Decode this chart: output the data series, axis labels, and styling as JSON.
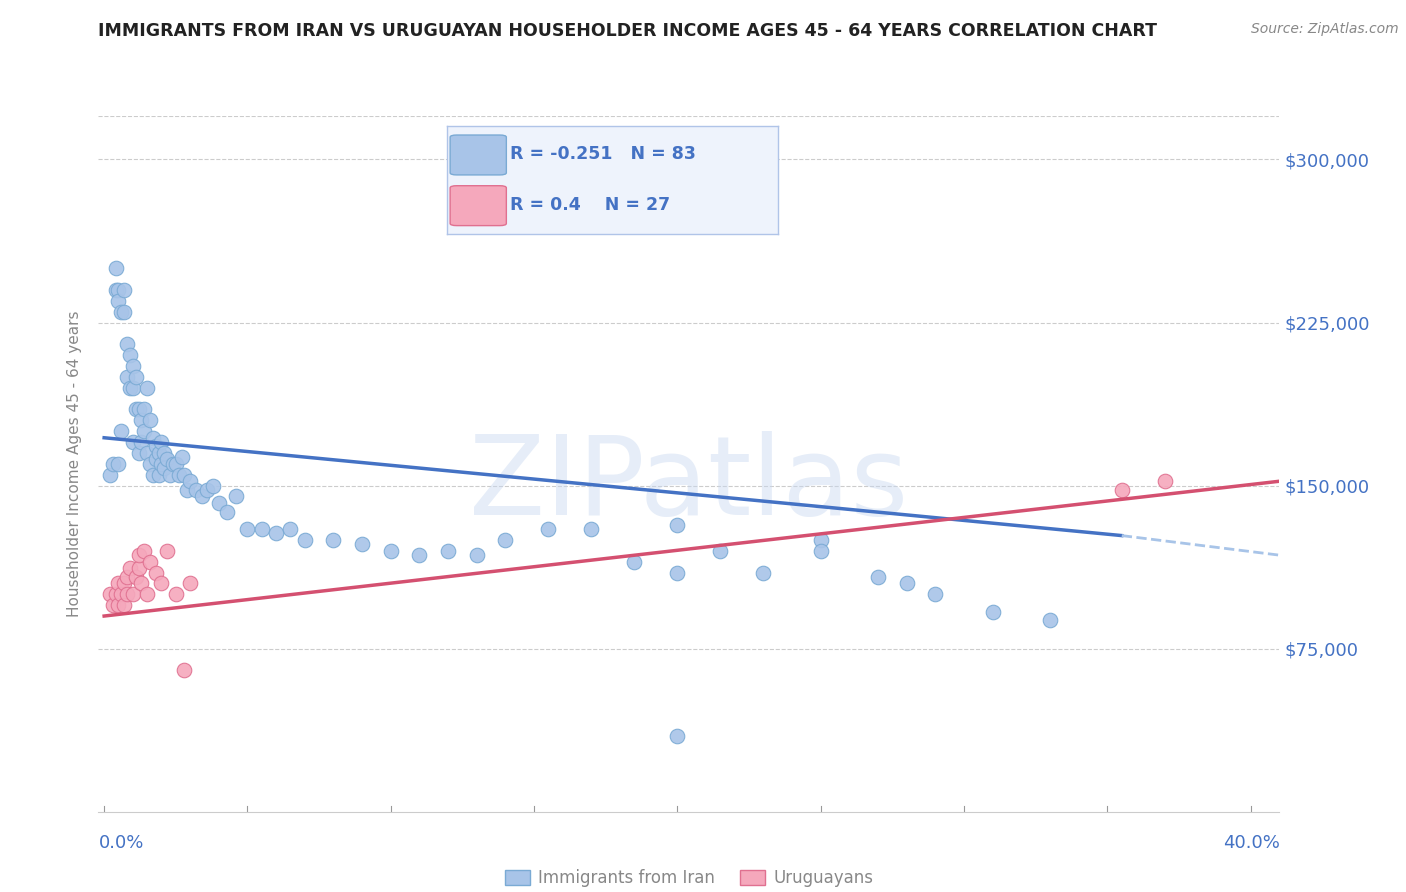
{
  "title": "IMMIGRANTS FROM IRAN VS URUGUAYAN HOUSEHOLDER INCOME AGES 45 - 64 YEARS CORRELATION CHART",
  "source": "Source: ZipAtlas.com",
  "ylabel": "Householder Income Ages 45 - 64 years",
  "yticks": [
    0,
    75000,
    150000,
    225000,
    300000
  ],
  "ytick_labels": [
    "",
    "$75,000",
    "$150,000",
    "$225,000",
    "$300,000"
  ],
  "xlim": [
    -0.002,
    0.41
  ],
  "ylim": [
    0,
    320000
  ],
  "iran_color": "#a8c4e8",
  "iran_edge": "#7aaad4",
  "uruguay_color": "#f5a8bc",
  "uruguay_edge": "#e07090",
  "trend_iran_solid_color": "#4472c4",
  "trend_iran_dash_color": "#a8c4e8",
  "trend_uruguay_color": "#d45070",
  "watermark_text": "ZIPatlas",
  "iran_R": -0.251,
  "iran_N": 83,
  "uruguay_R": 0.4,
  "uruguay_N": 27,
  "iran_trend_x0": 0.0,
  "iran_trend_y0": 172000,
  "iran_trend_x1": 0.355,
  "iran_trend_y1": 127000,
  "iran_trend_dash_x1": 0.41,
  "iran_trend_dash_y1": 118000,
  "uru_trend_x0": 0.0,
  "uru_trend_y0": 90000,
  "uru_trend_x1": 0.41,
  "uru_trend_y1": 152000,
  "iran_x": [
    0.002,
    0.003,
    0.004,
    0.004,
    0.005,
    0.005,
    0.005,
    0.006,
    0.006,
    0.007,
    0.007,
    0.008,
    0.008,
    0.009,
    0.009,
    0.01,
    0.01,
    0.01,
    0.011,
    0.011,
    0.012,
    0.012,
    0.013,
    0.013,
    0.014,
    0.014,
    0.015,
    0.015,
    0.016,
    0.016,
    0.017,
    0.017,
    0.018,
    0.018,
    0.019,
    0.019,
    0.02,
    0.02,
    0.021,
    0.021,
    0.022,
    0.023,
    0.024,
    0.025,
    0.026,
    0.027,
    0.028,
    0.029,
    0.03,
    0.032,
    0.034,
    0.036,
    0.038,
    0.04,
    0.043,
    0.046,
    0.05,
    0.055,
    0.06,
    0.065,
    0.07,
    0.08,
    0.09,
    0.1,
    0.11,
    0.12,
    0.13,
    0.14,
    0.155,
    0.17,
    0.185,
    0.2,
    0.215,
    0.23,
    0.25,
    0.27,
    0.29,
    0.31,
    0.33,
    0.2,
    0.25,
    0.28,
    0.2
  ],
  "iran_y": [
    155000,
    160000,
    240000,
    250000,
    240000,
    235000,
    160000,
    230000,
    175000,
    240000,
    230000,
    200000,
    215000,
    195000,
    210000,
    170000,
    195000,
    205000,
    185000,
    200000,
    165000,
    185000,
    180000,
    170000,
    185000,
    175000,
    195000,
    165000,
    180000,
    160000,
    172000,
    155000,
    168000,
    162000,
    165000,
    155000,
    160000,
    170000,
    158000,
    165000,
    162000,
    155000,
    160000,
    160000,
    155000,
    163000,
    155000,
    148000,
    152000,
    148000,
    145000,
    148000,
    150000,
    142000,
    138000,
    145000,
    130000,
    130000,
    128000,
    130000,
    125000,
    125000,
    123000,
    120000,
    118000,
    120000,
    118000,
    125000,
    130000,
    130000,
    115000,
    132000,
    120000,
    110000,
    125000,
    108000,
    100000,
    92000,
    88000,
    110000,
    120000,
    105000,
    35000
  ],
  "uru_x": [
    0.002,
    0.003,
    0.004,
    0.005,
    0.005,
    0.006,
    0.007,
    0.007,
    0.008,
    0.008,
    0.009,
    0.01,
    0.011,
    0.012,
    0.012,
    0.013,
    0.014,
    0.015,
    0.016,
    0.018,
    0.02,
    0.022,
    0.025,
    0.028,
    0.03,
    0.355,
    0.37
  ],
  "uru_y": [
    100000,
    95000,
    100000,
    105000,
    95000,
    100000,
    95000,
    105000,
    100000,
    108000,
    112000,
    100000,
    108000,
    112000,
    118000,
    105000,
    120000,
    100000,
    115000,
    110000,
    105000,
    120000,
    100000,
    65000,
    105000,
    148000,
    152000
  ]
}
